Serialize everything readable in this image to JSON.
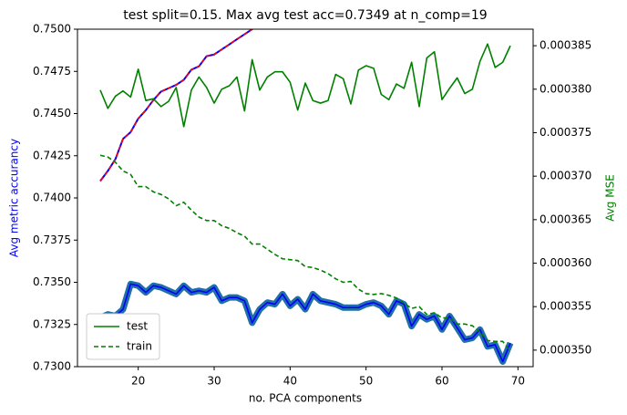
{
  "chart_data": {
    "type": "line",
    "title": "test split=0.15. Max avg test acc=0.7349 at n_comp=19",
    "xlabel": "no. PCA components",
    "ylabel": "Avg metric accurancy",
    "y2label": "Avg MSE",
    "ylabel_color": "#0000ff",
    "y2label_color": "#008000",
    "x": [
      15,
      16,
      17,
      18,
      19,
      20,
      21,
      22,
      23,
      24,
      25,
      26,
      27,
      28,
      29,
      30,
      31,
      32,
      33,
      34,
      35,
      36,
      37,
      38,
      39,
      40,
      41,
      42,
      43,
      44,
      45,
      46,
      47,
      48,
      49,
      50,
      51,
      52,
      53,
      54,
      55,
      56,
      57,
      58,
      59,
      60,
      61,
      62,
      63,
      64,
      65,
      66,
      67,
      68,
      69
    ],
    "xlim": [
      12,
      72
    ],
    "xticks": [
      20,
      30,
      40,
      50,
      60,
      70
    ],
    "ylim": [
      0.73,
      0.75
    ],
    "yticks": [
      {
        "value": 0.73,
        "label": "0.7300"
      },
      {
        "value": 0.7325,
        "label": "0.7325"
      },
      {
        "value": 0.735,
        "label": "0.7350"
      },
      {
        "value": 0.7375,
        "label": "0.7375"
      },
      {
        "value": 0.74,
        "label": "0.7400"
      },
      {
        "value": 0.7425,
        "label": "0.7425"
      },
      {
        "value": 0.745,
        "label": "0.7450"
      },
      {
        "value": 0.7475,
        "label": "0.7475"
      },
      {
        "value": 0.75,
        "label": "0.7500"
      }
    ],
    "y2lim": [
      0.0003481,
      0.0003869
    ],
    "y2ticks": [
      {
        "value": 0.00035,
        "label": "0.000350"
      },
      {
        "value": 0.000355,
        "label": "0.000355"
      },
      {
        "value": 0.00036,
        "label": "0.000360"
      },
      {
        "value": 0.000365,
        "label": "0.000365"
      },
      {
        "value": 0.00037,
        "label": "0.000370"
      },
      {
        "value": 0.000375,
        "label": "0.000375"
      },
      {
        "value": 0.00038,
        "label": "0.000380"
      },
      {
        "value": 0.000385,
        "label": "0.000385"
      }
    ],
    "legend": "lower left",
    "series": [
      {
        "color": "#0000ff",
        "band_color": "#1f6fa8",
        "axis": "y",
        "values": [
          0.7329,
          0.7331,
          0.733,
          0.7334,
          0.7349,
          0.7348,
          0.7344,
          0.7348,
          0.7347,
          0.7345,
          0.7343,
          0.7348,
          0.7344,
          0.7345,
          0.7344,
          0.7347,
          0.7339,
          0.7341,
          0.7341,
          0.7339,
          0.7326,
          0.7334,
          0.7338,
          0.7337,
          0.7343,
          0.7336,
          0.734,
          0.7334,
          0.7343,
          0.7339,
          0.7338,
          0.7337,
          0.7335,
          0.7335,
          0.7335,
          0.7337,
          0.7338,
          0.7336,
          0.7331,
          0.7339,
          0.7337,
          0.7324,
          0.7331,
          0.7328,
          0.733,
          0.7322,
          0.733,
          0.7323,
          0.7316,
          0.7317,
          0.7322,
          0.7312,
          0.7313,
          0.7303,
          0.7314
        ]
      },
      {
        "color": "#0000ff",
        "dash_color": "#ff0000",
        "axis": "y",
        "values": [
          0.741,
          0.7416,
          0.7423,
          0.7435,
          0.7439,
          0.7447,
          0.7452,
          0.7458,
          0.7463,
          0.7465,
          0.7467,
          0.747,
          0.7476,
          0.7478,
          0.7484,
          0.7485,
          0.7488,
          0.7491,
          0.7494,
          0.7497,
          0.75,
          0.7503,
          null,
          null,
          null,
          null,
          null,
          null,
          null,
          null,
          null,
          null,
          null,
          null,
          null,
          null,
          null,
          null,
          null,
          null,
          null,
          null,
          null,
          null,
          null,
          null,
          null,
          null,
          null,
          null,
          null,
          null,
          null,
          null,
          null
        ]
      },
      {
        "name": "test",
        "color": "#008000",
        "axis": "y2",
        "values": [
          0.0003799,
          0.0003778,
          0.0003792,
          0.0003798,
          0.0003791,
          0.0003823,
          0.0003787,
          0.0003789,
          0.000378,
          0.0003786,
          0.0003802,
          0.0003757,
          0.0003799,
          0.0003814,
          0.0003802,
          0.0003784,
          0.00038,
          0.0003804,
          0.0003814,
          0.0003775,
          0.0003834,
          0.0003799,
          0.0003814,
          0.000382,
          0.000382,
          0.0003808,
          0.0003776,
          0.0003807,
          0.0003787,
          0.0003784,
          0.0003787,
          0.0003817,
          0.0003812,
          0.0003783,
          0.0003822,
          0.0003827,
          0.0003824,
          0.0003794,
          0.0003788,
          0.0003806,
          0.0003801,
          0.0003831,
          0.000378,
          0.0003836,
          0.0003843,
          0.0003788,
          0.0003801,
          0.0003813,
          0.0003795,
          0.00038,
          0.0003832,
          0.0003852,
          0.0003825,
          0.0003831,
          0.000385
        ]
      },
      {
        "name": "train",
        "color": "#008000",
        "dashed": true,
        "axis": "y2",
        "values": [
          0.0003724,
          0.0003722,
          0.0003716,
          0.0003706,
          0.0003702,
          0.0003688,
          0.0003688,
          0.0003682,
          0.0003679,
          0.0003674,
          0.0003666,
          0.000367,
          0.0003661,
          0.0003653,
          0.0003649,
          0.0003649,
          0.0003643,
          0.000364,
          0.0003635,
          0.0003631,
          0.0003622,
          0.0003622,
          0.0003616,
          0.000361,
          0.0003605,
          0.0003604,
          0.0003603,
          0.0003596,
          0.0003595,
          0.0003592,
          0.0003588,
          0.0003582,
          0.0003578,
          0.0003579,
          0.000357,
          0.0003565,
          0.0003564,
          0.0003565,
          0.0003563,
          0.000356,
          0.0003554,
          0.0003548,
          0.000355,
          0.0003541,
          0.0003543,
          0.0003537,
          0.0003537,
          0.000353,
          0.000353,
          0.0003528,
          0.0003521,
          0.0003511,
          0.000351,
          0.000351,
          0.0003499
        ]
      }
    ]
  }
}
